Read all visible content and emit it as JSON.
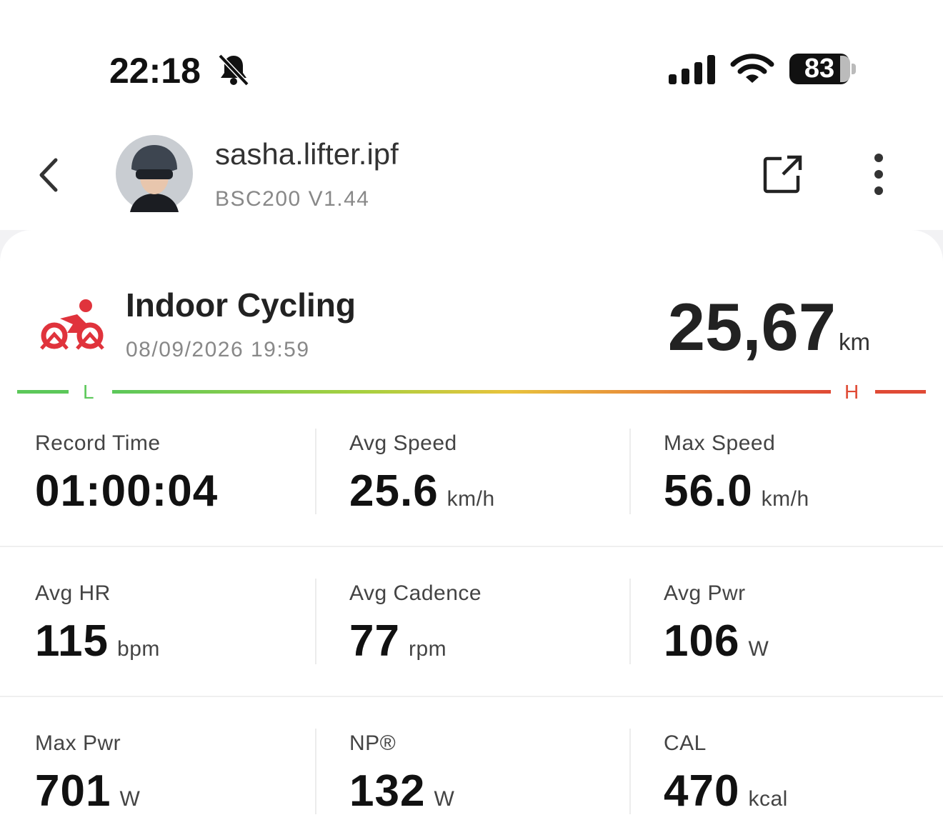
{
  "status_bar": {
    "time": "22:18",
    "battery": "83"
  },
  "header": {
    "username": "sasha.lifter.ipf",
    "device": "BSC200 V1.44"
  },
  "activity": {
    "title": "Indoor Cycling",
    "datetime": "08/09/2026 19:59",
    "distance": "25,67",
    "distance_unit": "km",
    "low_label": "L",
    "high_label": "H"
  },
  "stats": [
    {
      "label": "Record Time",
      "value": "01:00:04"
    },
    {
      "label": "Avg Speed",
      "value": "25.6",
      "unit": "km/h"
    },
    {
      "label": "Max Speed",
      "value": "56.0",
      "unit": "km/h"
    },
    {
      "label": "Avg HR",
      "value": "115",
      "unit": "bpm"
    },
    {
      "label": "Avg Cadence",
      "value": "77",
      "unit": "rpm"
    },
    {
      "label": "Avg Pwr",
      "value": "106",
      "unit": "W"
    },
    {
      "label": "Max Pwr",
      "value": "701",
      "unit": "W"
    },
    {
      "label": "NP®",
      "value": "132",
      "unit": "W"
    },
    {
      "label": "CAL",
      "value": "470",
      "unit": "kcal"
    }
  ]
}
